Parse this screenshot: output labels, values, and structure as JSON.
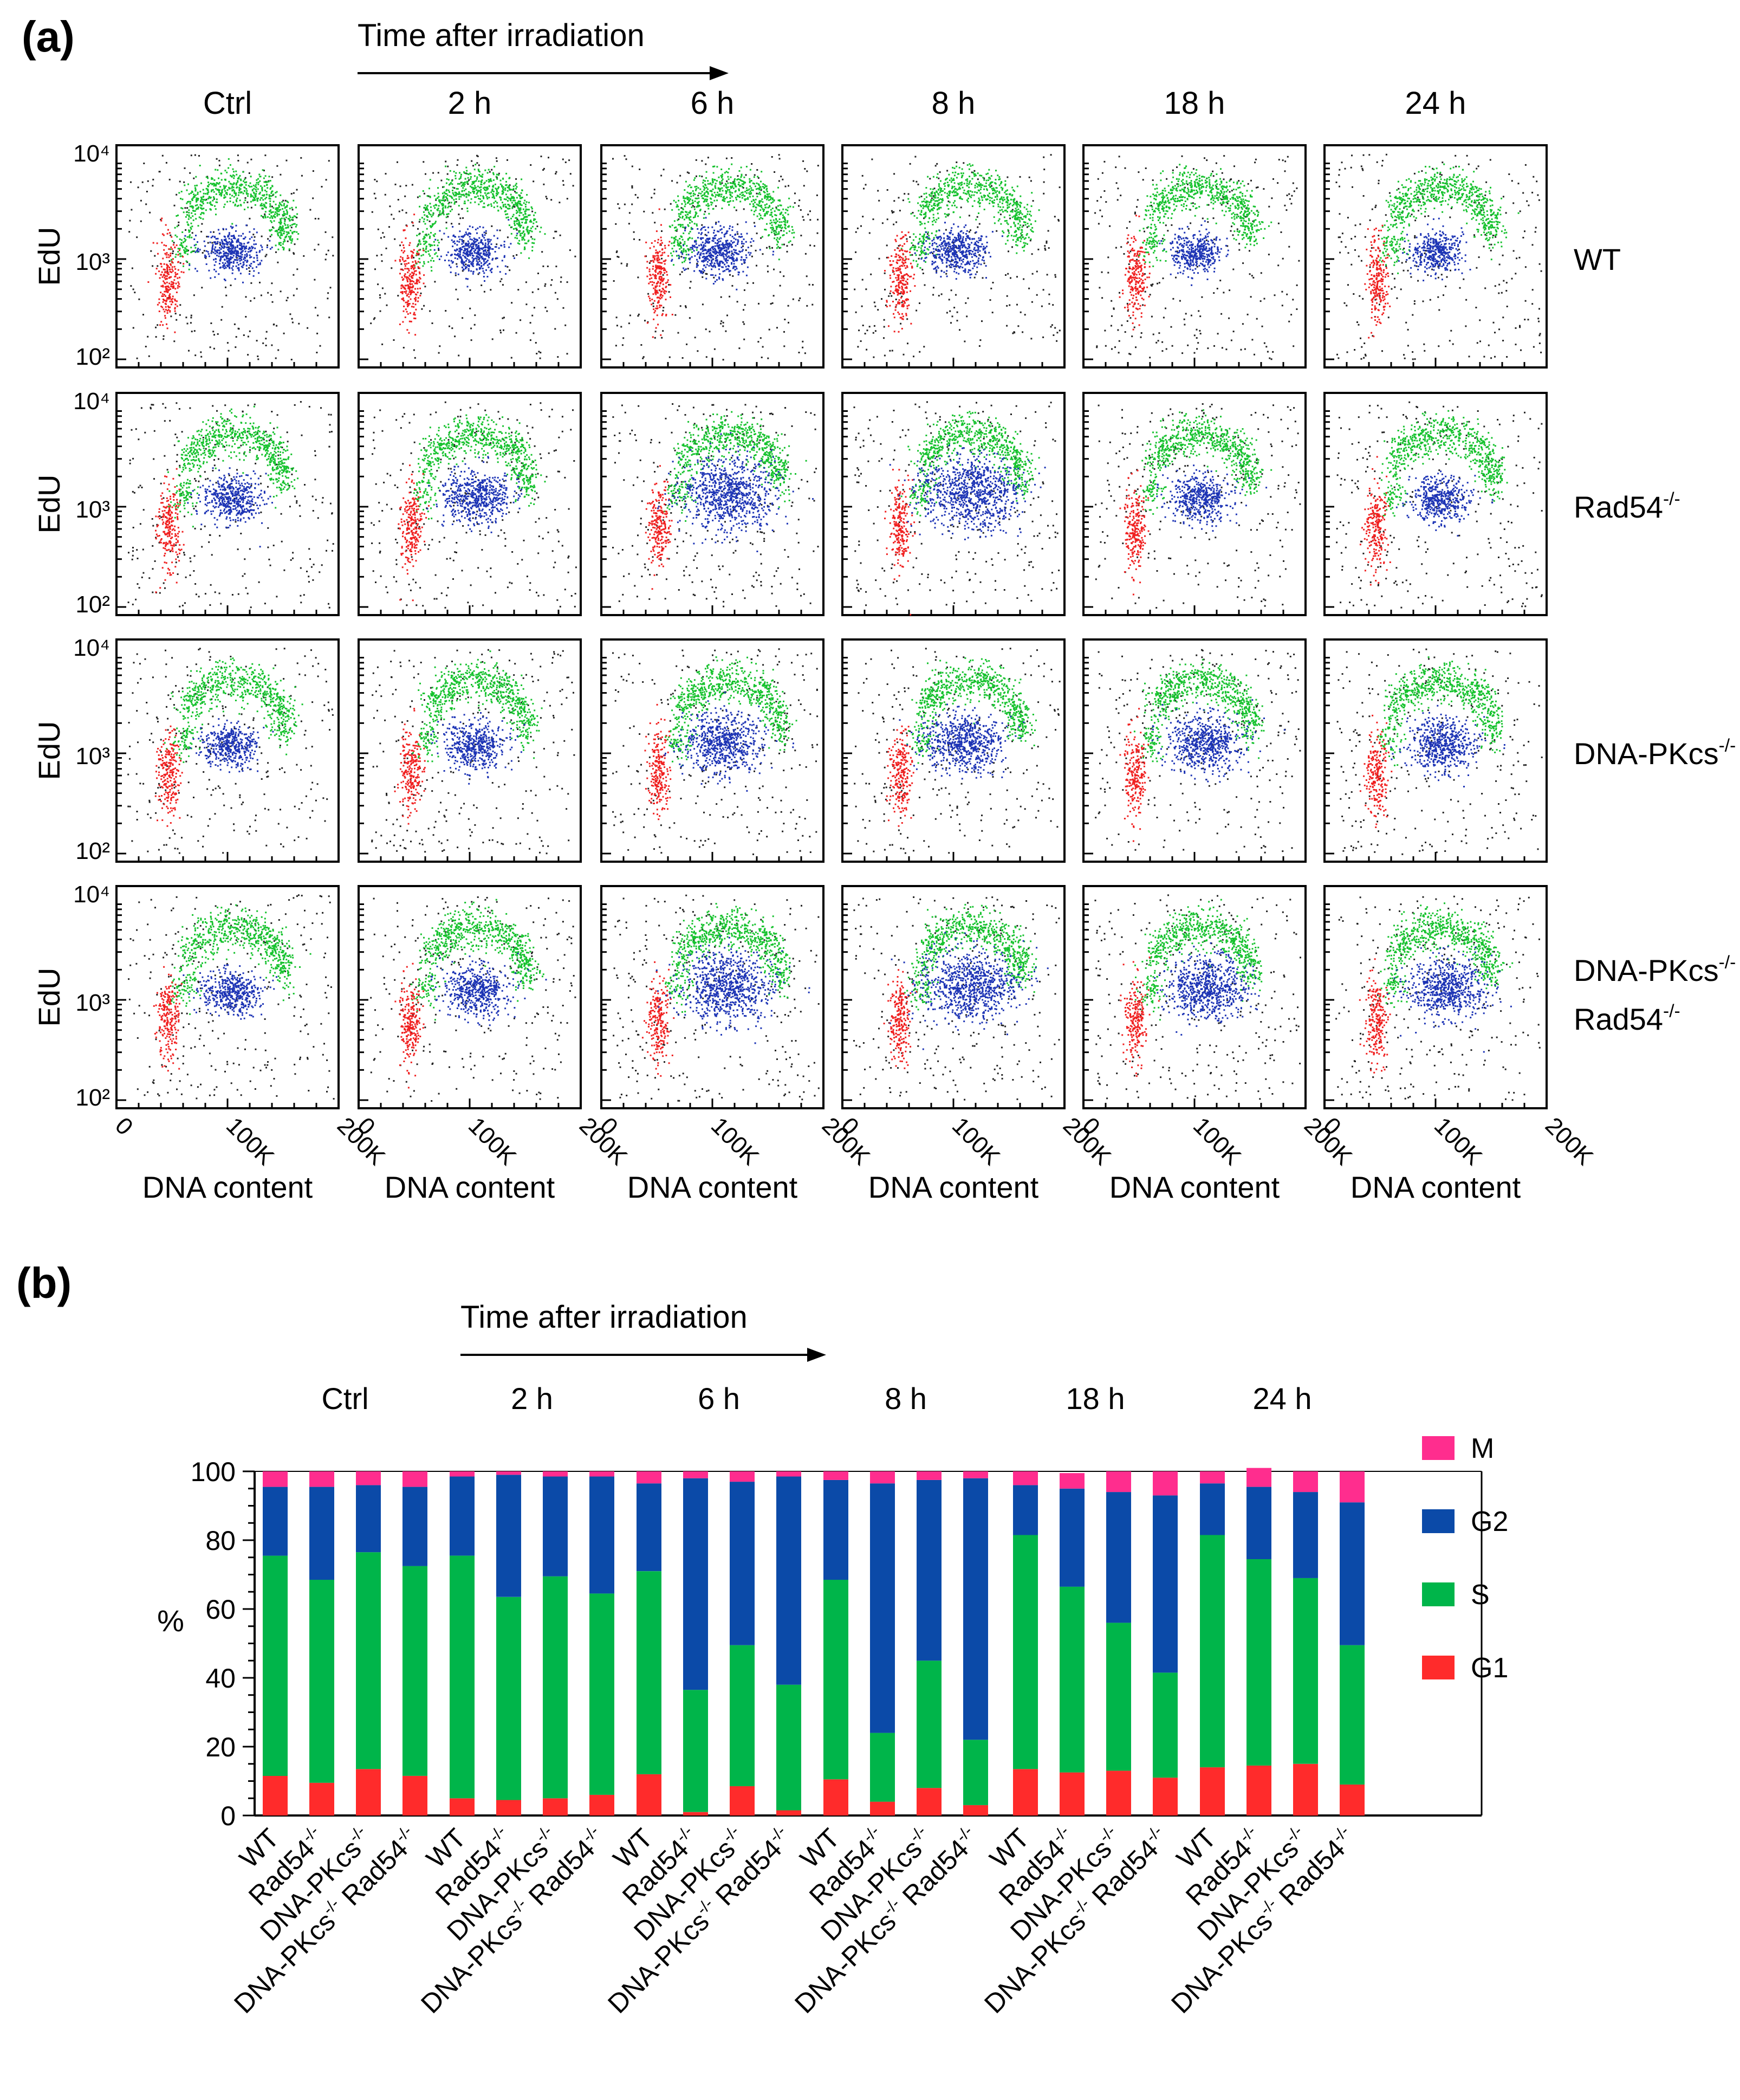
{
  "panel_a": {
    "label": "(a)",
    "time_arrow_label": "Time after irradiation",
    "columns": [
      "Ctrl",
      "2 h",
      "6 h",
      "8 h",
      "18 h",
      "24 h"
    ],
    "rows": [
      {
        "label": "WT",
        "sup": "",
        "label2": "",
        "sup2": ""
      },
      {
        "label": "Rad54",
        "sup": "-/-",
        "label2": "",
        "sup2": ""
      },
      {
        "label": "DNA-PKcs",
        "sup": "-/-",
        "label2": "",
        "sup2": ""
      },
      {
        "label": "DNA-PKcs",
        "sup": "-/-",
        "label2": "Rad54",
        "sup2": "-/-"
      }
    ],
    "y_axis_label": "EdU",
    "y_ticks": [
      "10⁴",
      "10³",
      "10²"
    ],
    "x_axis_label": "DNA content",
    "x_ticks": [
      "0",
      "100K",
      "200K"
    ]
  },
  "panel_b": {
    "label": "(b)",
    "time_arrow_label": "Time after irradiation",
    "legend": [
      {
        "label": "M",
        "color": "#ff2d8e"
      },
      {
        "label": "G2",
        "color": "#0b4aa8"
      },
      {
        "label": "S",
        "color": "#00b54a"
      },
      {
        "label": "G1",
        "color": "#ff2b2b"
      }
    ]
  },
  "chart_data": {
    "type": "bar",
    "stacked": true,
    "title": "",
    "ylabel": "%",
    "ylim": [
      0,
      100
    ],
    "yticks": [
      0,
      20,
      40,
      60,
      80,
      100
    ],
    "groups": [
      "Ctrl",
      "2 h",
      "6 h",
      "8 h",
      "18 h",
      "24 h"
    ],
    "genotypes": [
      "WT",
      "Rad54-/-",
      "DNA-PKcs-/-",
      "DNA-PKcs-/- Rad54-/-"
    ],
    "genotype_labels": [
      {
        "label": "WT",
        "sup": ""
      },
      {
        "label": "Rad54",
        "sup": "-/-"
      },
      {
        "label": "DNA-PKcs",
        "sup": "-/-"
      },
      {
        "label": "DNA-PKcs",
        "sup": "-/-",
        "label2": " Rad54",
        "sup2": "-/-"
      }
    ],
    "series": [
      {
        "name": "G1",
        "color": "#ff2b2b",
        "values": [
          [
            11.5,
            9.5,
            13.5,
            11.5
          ],
          [
            5,
            4.5,
            5,
            6
          ],
          [
            12,
            1,
            8.5,
            1.5
          ],
          [
            10.5,
            4,
            8,
            3
          ],
          [
            13.5,
            12.5,
            13,
            11
          ],
          [
            14,
            14.5,
            15,
            9
          ]
        ]
      },
      {
        "name": "S",
        "color": "#00b54a",
        "values": [
          [
            64,
            59,
            63,
            61
          ],
          [
            70.5,
            59,
            64.5,
            58.5
          ],
          [
            59,
            35.5,
            41,
            36.5
          ],
          [
            58,
            20,
            37,
            19
          ],
          [
            68,
            54,
            43,
            30.5
          ],
          [
            67.5,
            60,
            54,
            40.5
          ]
        ]
      },
      {
        "name": "G2",
        "color": "#0b4aa8",
        "values": [
          [
            20,
            27,
            19.5,
            23
          ],
          [
            23,
            35.5,
            29,
            34
          ],
          [
            25.5,
            61.5,
            47.5,
            60.5
          ],
          [
            29,
            72.5,
            52.5,
            76
          ]
        ]
      },
      {
        "name": "M",
        "color": "#ff2d8e",
        "values": [
          [
            4.5,
            4.5,
            4,
            4.5
          ],
          [
            1.5,
            1,
            1.5,
            1.5
          ],
          [
            3.5,
            2,
            3,
            1.5
          ],
          [
            2.5,
            3.5,
            2.5,
            2
          ],
          [
            4,
            4.5,
            6,
            7
          ],
          [
            3.5,
            5.5,
            6,
            9
          ]
        ]
      }
    ],
    "g2_late": [
      [
        14.5,
        28.5,
        38,
        51.5
      ],
      [
        15,
        21,
        25,
        41.5
      ]
    ]
  }
}
